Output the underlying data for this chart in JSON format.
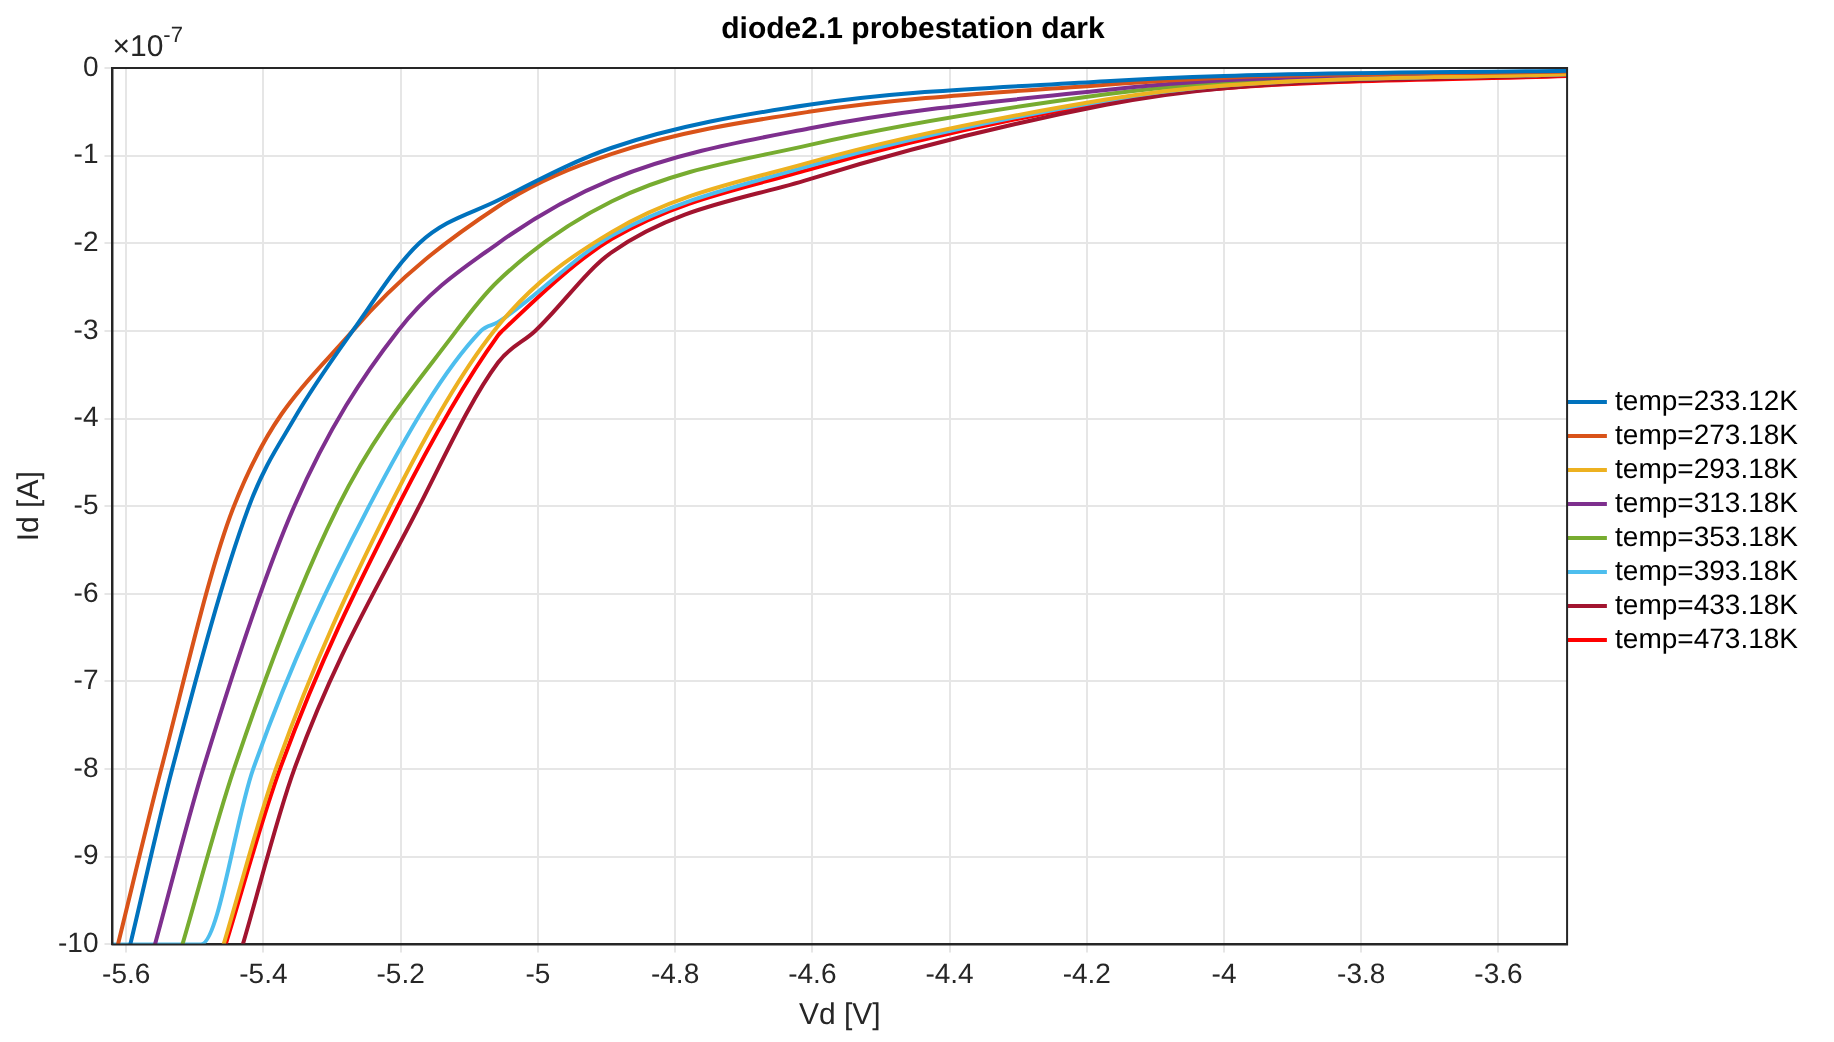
{
  "chart_data": {
    "type": "line",
    "title": "diode2.1 probestation dark",
    "xlabel": "Vd [V]",
    "ylabel": "Id [A]",
    "annotations": [
      "×10$^{-7}$"
    ],
    "xlim": [
      -5.62,
      -3.5
    ],
    "xticks": [
      -5.6,
      -5.4,
      -5.2,
      -5,
      -4.8,
      -4.6,
      -4.4,
      -4.2,
      -4,
      -3.8,
      -3.6
    ],
    "ylim": [
      -10,
      0
    ],
    "yticks": [
      -10,
      -9,
      -8,
      -7,
      -6,
      -5,
      -4,
      -3,
      -2,
      -1,
      0
    ],
    "grid": true,
    "legend": "right",
    "marker": "none",
    "line_style": "solid",
    "series": [
      {
        "name": "temp=233.12K",
        "color": "#0072bd",
        "x": [
          -5.594,
          -5.533,
          -5.421,
          -5.355,
          -5.27,
          -5.173,
          -5.058,
          -4.892,
          -4.605,
          -4.172,
          -4.0,
          -3.5
        ],
        "values": [
          -10,
          -8,
          -5,
          -4,
          -3,
          -2,
          -1.51,
          -0.91,
          -0.42,
          -0.15,
          -0.09,
          -0.03
        ]
      },
      {
        "name": "temp=273.18K",
        "color": "#d95319",
        "x": [
          -5.612,
          -5.549,
          -5.443,
          -5.27,
          -5.058,
          -4.892,
          -4.605,
          -4.172,
          -4.0,
          -3.5
        ],
        "values": [
          -10,
          -8,
          -5,
          -3,
          -1.58,
          -0.98,
          -0.5,
          -0.19,
          -0.11,
          -0.04
        ]
      },
      {
        "name": "temp=293.18K",
        "color": "#edb120",
        "x": [
          -5.458,
          -5.382,
          -5.216,
          -5.064,
          -4.892,
          -4.605,
          -4.172,
          -4.0,
          -3.5
        ],
        "values": [
          -10,
          -8,
          -5,
          -3,
          -1.87,
          -1.08,
          -0.36,
          -0.2,
          -0.07
        ]
      },
      {
        "name": "temp=313.18K",
        "color": "#7e2f8e",
        "x": [
          -5.558,
          -5.488,
          -5.355,
          -5.204,
          -5.058,
          -4.892,
          -4.605,
          -4.172,
          -4.0,
          -3.5
        ],
        "values": [
          -10,
          -8,
          -5,
          -3,
          -2.0,
          -1.27,
          -0.69,
          -0.25,
          -0.14,
          -0.05
        ]
      },
      {
        "name": "temp=353.18K",
        "color": "#77ac30",
        "x": [
          -5.518,
          -5.443,
          -5.291,
          -5.119,
          -5.058,
          -4.892,
          -4.605,
          -4.172,
          -4.0,
          -3.5
        ],
        "values": [
          -10,
          -8,
          -5,
          -3,
          -2.43,
          -1.52,
          -0.88,
          -0.3,
          -0.17,
          -0.06
        ]
      },
      {
        "name": "temp=393.18K",
        "color": "#4dbeee",
        "x": [
          -5.62,
          -5.491,
          -5.415,
          -5.246,
          -5.083,
          -5.058,
          -4.892,
          -4.605,
          -4.172,
          -4.0,
          -3.5
        ],
        "values": [
          -10,
          -10,
          -8,
          -5,
          -3,
          -2.9,
          -1.91,
          -1.12,
          -0.37,
          -0.2,
          -0.07
        ]
      },
      {
        "name": "temp=433.18K",
        "color": "#a2142f",
        "x": [
          -5.43,
          -5.355,
          -5.173,
          -5.058,
          -5.004,
          -4.892,
          -4.605,
          -4.172,
          -4.0,
          -3.5
        ],
        "values": [
          -10,
          -8,
          -5,
          -3.36,
          -3,
          -2.1,
          -1.27,
          -0.42,
          -0.23,
          -0.08
        ]
      },
      {
        "name": "temp=473.18K",
        "color": "#ff0000",
        "x": [
          -5.455,
          -5.376,
          -5.204,
          -5.058,
          -5.052,
          -4.892,
          -4.605,
          -4.172,
          -4.0,
          -3.5
        ],
        "values": [
          -10,
          -8,
          -5,
          -3.05,
          -3,
          -1.95,
          -1.16,
          -0.39,
          -0.23,
          -0.09
        ]
      }
    ]
  }
}
